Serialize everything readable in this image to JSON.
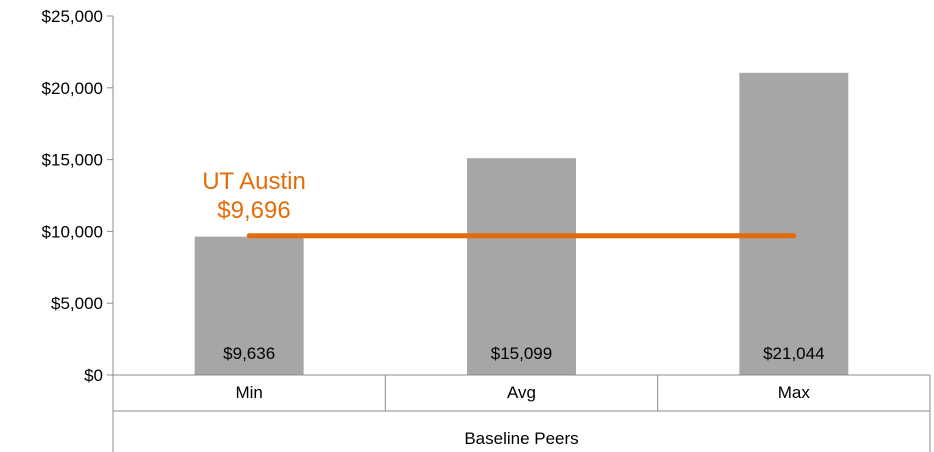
{
  "chart_data": {
    "type": "bar",
    "categories": [
      "Min",
      "Avg",
      "Max"
    ],
    "group_label": "Baseline Peers",
    "values": [
      9636,
      15099,
      21044
    ],
    "value_labels": [
      "$9,636",
      "$15,099",
      "$21,044"
    ],
    "ylim": [
      0,
      25000
    ],
    "y_ticks": [
      0,
      5000,
      10000,
      15000,
      20000,
      25000
    ],
    "y_tick_labels": [
      "$0",
      "$5,000",
      "$10,000",
      "$15,000",
      "$20,000",
      "$25,000"
    ],
    "grid": false,
    "bar_color": "#a6a6a6",
    "reference_line": {
      "name": "UT Austin",
      "value": 9696,
      "value_label": "$9,696",
      "color": "#e36c0a"
    }
  }
}
